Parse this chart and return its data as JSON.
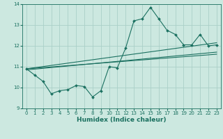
{
  "title": "",
  "xlabel": "Humidex (Indice chaleur)",
  "ylabel": "",
  "bg_color": "#cce8e0",
  "line_color": "#1a7060",
  "grid_color": "#aad0c8",
  "xlim": [
    -0.5,
    23.5
  ],
  "ylim": [
    9,
    14
  ],
  "yticks": [
    9,
    10,
    11,
    12,
    13,
    14
  ],
  "xticks": [
    0,
    1,
    2,
    3,
    4,
    5,
    6,
    7,
    8,
    9,
    10,
    11,
    12,
    13,
    14,
    15,
    16,
    17,
    18,
    19,
    20,
    21,
    22,
    23
  ],
  "lines": [
    {
      "x": [
        0,
        1,
        2,
        3,
        4,
        5,
        6,
        7,
        8,
        9,
        10,
        11,
        12,
        13,
        14,
        15,
        16,
        17,
        18,
        19,
        20,
        21,
        22,
        23
      ],
      "y": [
        10.9,
        10.6,
        10.3,
        9.7,
        9.85,
        9.9,
        10.1,
        10.05,
        9.55,
        9.85,
        11.0,
        10.95,
        11.9,
        13.2,
        13.3,
        13.85,
        13.3,
        12.75,
        12.55,
        12.05,
        12.05,
        12.55,
        12.0,
        12.05
      ],
      "marker": true
    },
    {
      "x": [
        0,
        23
      ],
      "y": [
        10.9,
        11.6
      ],
      "marker": false
    },
    {
      "x": [
        0,
        23
      ],
      "y": [
        10.9,
        12.15
      ],
      "marker": false
    },
    {
      "x": [
        0,
        23
      ],
      "y": [
        10.85,
        11.7
      ],
      "marker": false
    }
  ]
}
